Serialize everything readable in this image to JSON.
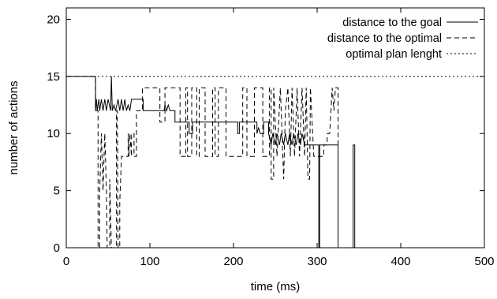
{
  "chart_data": {
    "type": "line",
    "xlabel": "time (ms)",
    "ylabel": "number of actions",
    "xlim": [
      0,
      500
    ],
    "ylim": [
      0,
      21
    ],
    "x_ticks": [
      0,
      100,
      200,
      300,
      400,
      500
    ],
    "y_ticks": [
      0,
      5,
      10,
      15,
      20
    ],
    "grid": false,
    "legend_position": "top-right",
    "series": [
      {
        "name": "distance to the goal",
        "line_style": "solid",
        "color": "#000000",
        "points": [
          [
            0,
            15
          ],
          [
            35,
            15
          ],
          [
            35,
            12
          ],
          [
            36,
            13
          ],
          [
            37,
            12
          ],
          [
            39,
            13
          ],
          [
            40,
            12
          ],
          [
            42,
            13
          ],
          [
            44,
            12
          ],
          [
            46,
            13
          ],
          [
            48,
            12
          ],
          [
            50,
            13
          ],
          [
            53,
            12
          ],
          [
            54,
            15
          ],
          [
            55,
            12
          ],
          [
            57,
            12.5
          ],
          [
            59,
            12
          ],
          [
            62,
            13
          ],
          [
            64,
            12
          ],
          [
            66,
            13
          ],
          [
            68,
            12
          ],
          [
            70,
            13
          ],
          [
            72,
            12
          ],
          [
            74,
            12.5
          ],
          [
            76,
            12
          ],
          [
            78,
            13
          ],
          [
            92,
            13
          ],
          [
            92,
            12
          ],
          [
            117,
            12
          ],
          [
            118,
            12.5
          ],
          [
            120,
            12
          ],
          [
            122,
            12.5
          ],
          [
            124,
            12
          ],
          [
            130,
            12
          ],
          [
            130,
            11
          ],
          [
            147,
            11
          ],
          [
            147,
            10
          ],
          [
            151,
            10
          ],
          [
            151,
            11
          ],
          [
            205,
            11
          ],
          [
            205,
            10
          ],
          [
            207,
            10
          ],
          [
            207,
            11
          ],
          [
            228,
            11
          ],
          [
            228,
            10
          ],
          [
            230,
            10.5
          ],
          [
            232,
            10
          ],
          [
            236,
            10
          ],
          [
            236,
            11
          ],
          [
            242,
            11
          ],
          [
            242,
            10
          ],
          [
            245,
            9
          ],
          [
            247,
            10
          ],
          [
            250,
            9
          ],
          [
            252,
            10
          ],
          [
            255,
            9
          ],
          [
            257,
            10
          ],
          [
            260,
            9
          ],
          [
            262,
            10
          ],
          [
            265,
            9
          ],
          [
            267,
            10
          ],
          [
            270,
            9
          ],
          [
            272,
            10
          ],
          [
            275,
            9
          ],
          [
            277,
            10
          ],
          [
            280,
            9
          ],
          [
            282,
            10
          ],
          [
            285,
            9
          ],
          [
            287,
            9
          ],
          [
            302,
            9
          ],
          [
            302,
            0
          ],
          [
            303,
            0
          ],
          [
            303,
            9
          ],
          [
            325,
            9
          ],
          [
            325,
            0
          ],
          [
            343,
            0
          ],
          [
            343,
            9
          ],
          [
            345,
            9
          ],
          [
            345,
            0
          ],
          [
            500,
            0
          ]
        ]
      },
      {
        "name": "distance to the optimal",
        "line_style": "dashed",
        "color": "#000000",
        "points": [
          [
            0,
            15
          ],
          [
            35,
            15
          ],
          [
            35,
            12
          ],
          [
            38,
            12
          ],
          [
            38,
            0
          ],
          [
            40,
            0
          ],
          [
            40,
            5
          ],
          [
            42,
            10
          ],
          [
            44,
            5
          ],
          [
            46,
            10
          ],
          [
            48,
            5
          ],
          [
            49,
            0
          ],
          [
            52,
            0
          ],
          [
            52,
            6
          ],
          [
            54,
            0
          ],
          [
            60,
            0
          ],
          [
            60,
            12
          ],
          [
            61,
            12
          ],
          [
            62,
            0
          ],
          [
            64,
            0
          ],
          [
            64,
            4
          ],
          [
            66,
            8
          ],
          [
            74,
            8
          ],
          [
            74,
            10
          ],
          [
            75,
            8
          ],
          [
            76,
            10
          ],
          [
            78,
            8
          ],
          [
            78,
            10
          ],
          [
            81,
            10
          ],
          [
            81,
            8
          ],
          [
            84,
            8
          ],
          [
            84,
            12
          ],
          [
            91,
            12
          ],
          [
            91,
            14
          ],
          [
            112,
            14
          ],
          [
            112,
            11
          ],
          [
            118,
            11
          ],
          [
            118,
            14
          ],
          [
            136,
            14
          ],
          [
            136,
            8
          ],
          [
            143,
            8
          ],
          [
            143,
            14
          ],
          [
            145,
            14
          ],
          [
            145,
            8
          ],
          [
            150,
            8
          ],
          [
            150,
            14
          ],
          [
            156,
            14
          ],
          [
            156,
            8
          ],
          [
            159,
            8
          ],
          [
            159,
            14
          ],
          [
            166,
            14
          ],
          [
            166,
            8
          ],
          [
            175,
            8
          ],
          [
            175,
            14
          ],
          [
            178,
            14
          ],
          [
            178,
            8
          ],
          [
            182,
            8
          ],
          [
            182,
            14
          ],
          [
            191,
            14
          ],
          [
            191,
            8
          ],
          [
            211,
            8
          ],
          [
            211,
            14
          ],
          [
            216,
            14
          ],
          [
            216,
            8
          ],
          [
            225,
            8
          ],
          [
            225,
            14
          ],
          [
            235,
            14
          ],
          [
            235,
            8
          ],
          [
            243,
            8
          ],
          [
            243,
            14
          ],
          [
            245,
            14
          ],
          [
            245,
            6
          ],
          [
            248,
            6
          ],
          [
            248,
            14
          ],
          [
            252,
            8
          ],
          [
            256,
            14
          ],
          [
            260,
            6
          ],
          [
            262,
            12
          ],
          [
            265,
            14
          ],
          [
            268,
            8
          ],
          [
            270,
            14
          ],
          [
            273,
            8
          ],
          [
            276,
            14
          ],
          [
            279,
            8
          ],
          [
            282,
            14
          ],
          [
            285,
            8
          ],
          [
            287,
            14
          ],
          [
            289,
            6
          ],
          [
            291,
            6
          ],
          [
            292,
            14
          ],
          [
            296,
            8
          ],
          [
            308,
            8
          ],
          [
            308,
            9
          ],
          [
            312,
            9
          ],
          [
            312,
            10
          ],
          [
            315,
            10
          ],
          [
            318,
            14
          ],
          [
            320,
            12
          ],
          [
            322,
            14
          ],
          [
            325,
            14
          ],
          [
            325,
            0
          ],
          [
            500,
            0
          ]
        ]
      },
      {
        "name": "optimal plan lenght",
        "line_style": "dotted",
        "color": "#000000",
        "points": [
          [
            0,
            15
          ],
          [
            500,
            15
          ]
        ]
      }
    ]
  }
}
